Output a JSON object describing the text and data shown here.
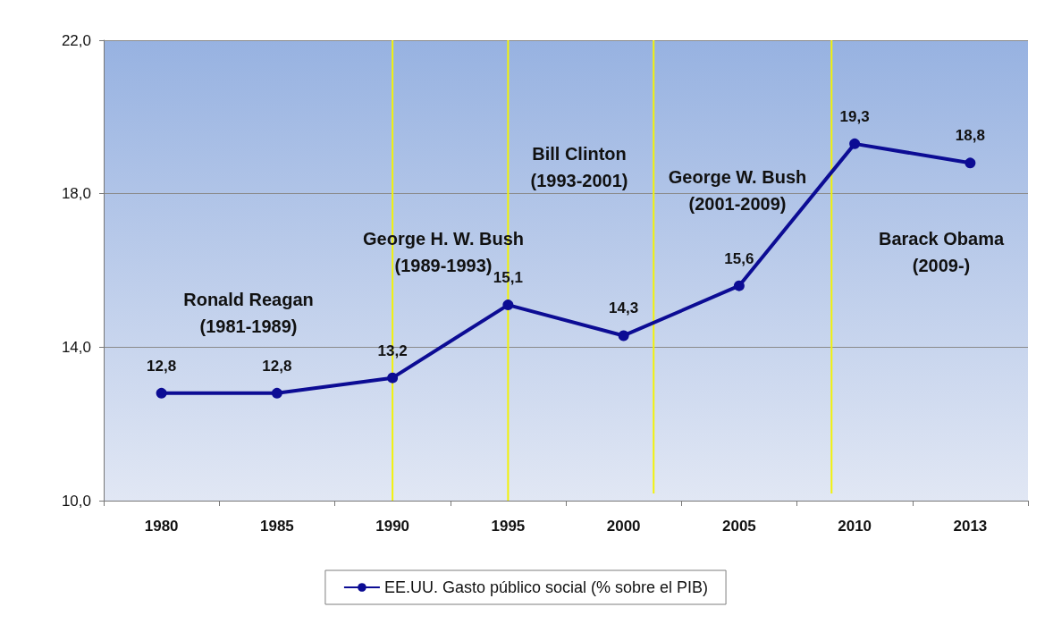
{
  "chart_data": {
    "type": "line",
    "categories": [
      "1980",
      "1985",
      "1990",
      "1995",
      "2000",
      "2005",
      "2010",
      "2013"
    ],
    "series": [
      {
        "name": "EE.UU. Gasto público social (% sobre el PIB)",
        "color": "#0c0c94",
        "values": [
          12.8,
          12.8,
          13.2,
          15.1,
          14.3,
          15.6,
          19.3,
          18.8
        ],
        "value_labels": [
          "12,8",
          "12,8",
          "13,2",
          "15,1",
          "14,3",
          "15,6",
          "19,3",
          "18,8"
        ]
      }
    ],
    "ylim": [
      10,
      22
    ],
    "yticks": [
      {
        "value": 10,
        "label": "10,0"
      },
      {
        "value": 14,
        "label": "14,0"
      },
      {
        "value": 18,
        "label": "18,0"
      },
      {
        "value": 22,
        "label": "22,0"
      }
    ],
    "ref_lines": [
      {
        "axis": "x",
        "value": "1990",
        "color": "#f2f20a"
      },
      {
        "axis": "x",
        "value": "1995",
        "color": "#f2f20a"
      }
    ],
    "grid": "y",
    "legend": "bottom",
    "marker": "circle",
    "line_style": "solid",
    "annotations": [
      "Ronald Reagan\n(1981-1989)",
      "George H. W. Bush\n(1989-1993)",
      "Bill Clinton\n(1993-2001)",
      "George W. Bush\n(2001-2009)",
      "Barack Obama\n(2009-)"
    ]
  }
}
